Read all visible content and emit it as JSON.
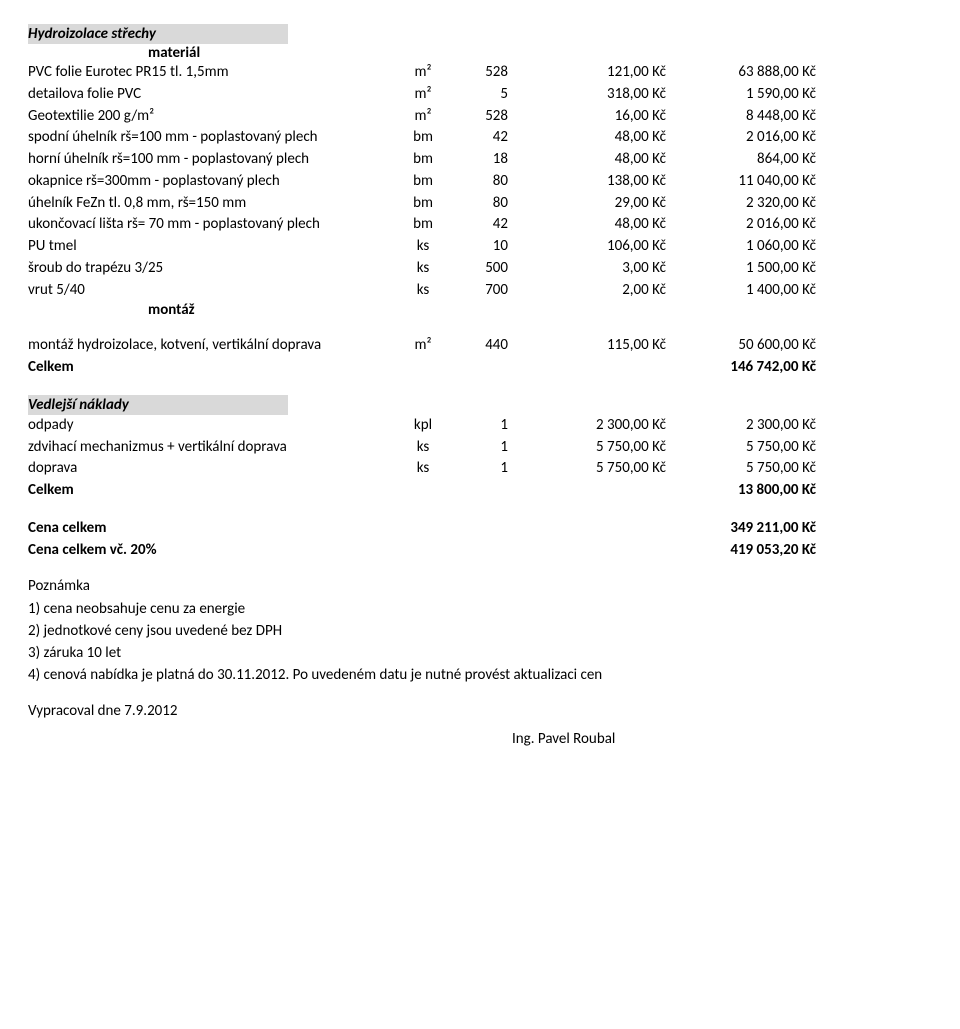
{
  "hydro": {
    "title": "Hydroizolace střechy",
    "material_label": "materiál",
    "rows": [
      {
        "desc": "PVC folie Eurotec PR15 tl. 1,5mm",
        "unit": "m²",
        "qty": "528",
        "price": "121,00 Kč",
        "total": "63 888,00 Kč"
      },
      {
        "desc": "detailova folie PVC",
        "unit": "m²",
        "qty": "5",
        "price": "318,00 Kč",
        "total": "1 590,00 Kč"
      },
      {
        "desc": "Geotextilie 200 g/m²",
        "unit": "m²",
        "qty": "528",
        "price": "16,00 Kč",
        "total": "8 448,00 Kč"
      },
      {
        "desc": "spodní úhelník rš=100 mm - poplastovaný plech",
        "unit": "bm",
        "qty": "42",
        "price": "48,00 Kč",
        "total": "2 016,00 Kč"
      },
      {
        "desc": "horní úhelník rš=100 mm - poplastovaný plech",
        "unit": "bm",
        "qty": "18",
        "price": "48,00 Kč",
        "total": "864,00 Kč"
      },
      {
        "desc": "okapnice rš=300mm - poplastovaný plech",
        "unit": "bm",
        "qty": "80",
        "price": "138,00 Kč",
        "total": "11 040,00 Kč"
      },
      {
        "desc": "úhelník FeZn tl. 0,8 mm, rš=150 mm",
        "unit": "bm",
        "qty": "80",
        "price": "29,00 Kč",
        "total": "2 320,00 Kč"
      },
      {
        "desc": "ukončovací lišta rš= 70 mm - poplastovaný plech",
        "unit": "bm",
        "qty": "42",
        "price": "48,00 Kč",
        "total": "2 016,00 Kč"
      },
      {
        "desc": "PU tmel",
        "unit": "ks",
        "qty": "10",
        "price": "106,00 Kč",
        "total": "1 060,00 Kč"
      },
      {
        "desc": "šroub do trapézu  3/25",
        "unit": "ks",
        "qty": "500",
        "price": "3,00 Kč",
        "total": "1 500,00 Kč"
      },
      {
        "desc": "vrut 5/40",
        "unit": "ks",
        "qty": "700",
        "price": "2,00 Kč",
        "total": "1 400,00 Kč"
      }
    ],
    "montaz_label": "montáž",
    "montaz_row": {
      "desc": "montáž hydroizolace, kotvení,  vertikální doprava",
      "unit": "m²",
      "qty": "440",
      "price": "115,00 Kč",
      "total": "50 600,00 Kč"
    },
    "celkem_label": "Celkem",
    "celkem_total": "146 742,00 Kč"
  },
  "vedlejsi": {
    "title": "Vedlejší náklady",
    "rows": [
      {
        "desc": "odpady",
        "unit": "kpl",
        "qty": "1",
        "price": "2 300,00 Kč",
        "total": "2 300,00 Kč"
      },
      {
        "desc": "zdvihací mechanizmus + vertikální doprava",
        "unit": "ks",
        "qty": "1",
        "price": "5 750,00 Kč",
        "total": "5 750,00 Kč"
      },
      {
        "desc": "doprava",
        "unit": "ks",
        "qty": "1",
        "price": "5 750,00 Kč",
        "total": "5 750,00 Kč"
      }
    ],
    "celkem_label": "Celkem",
    "celkem_total": "13 800,00 Kč"
  },
  "summary": {
    "cena_label": "Cena celkem",
    "cena_total": "349 211,00 Kč",
    "cena_vc_label": "Cena celkem vč. 20%",
    "cena_vc_total": "419 053,20 Kč"
  },
  "notes": {
    "heading": "Poznámka",
    "items": [
      "1) cena neobsahuje cenu za energie",
      "2) jednotkové ceny jsou uvedené bez  DPH",
      "3) záruka 10 let",
      "4) cenová nabídka je platná do 30.11.2012. Po uvedeném datu je nutné provést aktualizaci cen"
    ]
  },
  "footer": {
    "prepared": "Vypracoval dne 7.9.2012",
    "signer": "Ing. Pavel Roubal"
  }
}
